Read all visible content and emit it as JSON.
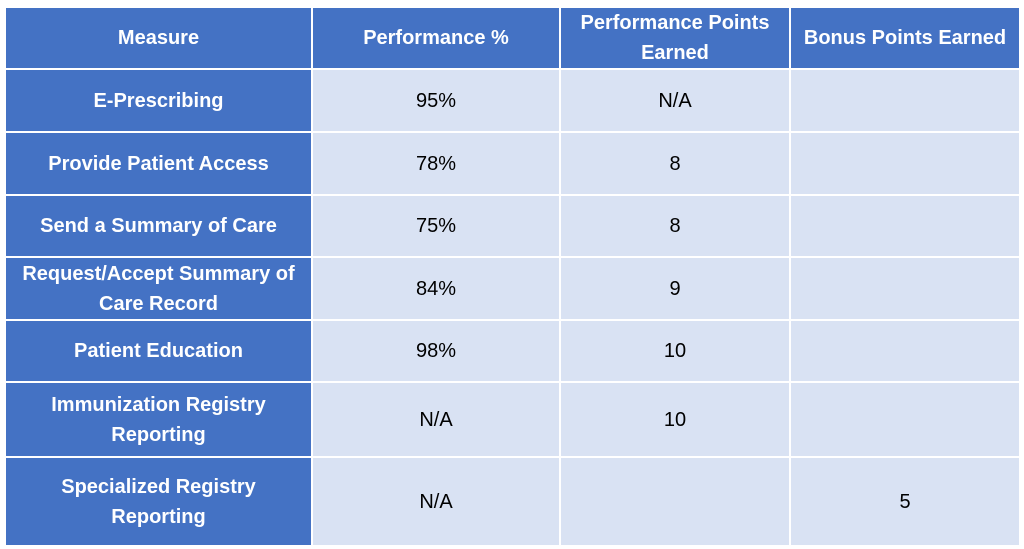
{
  "table": {
    "headers": {
      "measure": "Measure",
      "performance_pct": "Performance %",
      "performance_points": "Performance Points Earned",
      "bonus_points": "Bonus Points Earned"
    },
    "rows": [
      {
        "measure": "E-Prescribing",
        "performance_pct": "95%",
        "performance_points": "N/A",
        "bonus_points": ""
      },
      {
        "measure": "Provide Patient Access",
        "performance_pct": "78%",
        "performance_points": "8",
        "bonus_points": ""
      },
      {
        "measure": "Send a Summary of Care",
        "performance_pct": "75%",
        "performance_points": "8",
        "bonus_points": ""
      },
      {
        "measure": "Request/Accept Summary of Care Record",
        "performance_pct": "84%",
        "performance_points": "9",
        "bonus_points": ""
      },
      {
        "measure": "Patient Education",
        "performance_pct": "98%",
        "performance_points": "10",
        "bonus_points": ""
      },
      {
        "measure": "Immunization Registry Reporting",
        "performance_pct": "N/A",
        "performance_points": "10",
        "bonus_points": ""
      },
      {
        "measure": "Specialized Registry Reporting",
        "performance_pct": "N/A",
        "performance_points": "",
        "bonus_points": "5"
      }
    ]
  },
  "colors": {
    "header_bg": "#4472c4",
    "cell_bg": "#d9e2f3",
    "header_text": "#ffffff",
    "cell_text": "#000000"
  }
}
